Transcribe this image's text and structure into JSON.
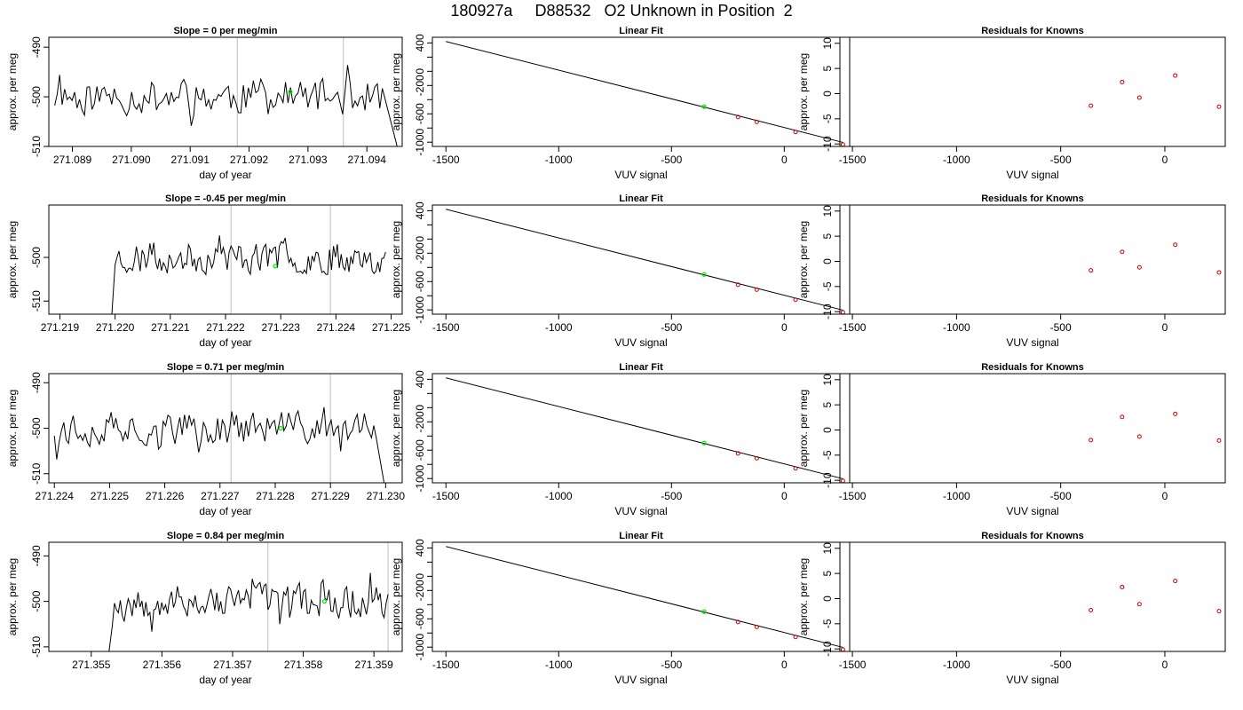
{
  "title": "180927a     D88532   O2 Unknown in Position  2",
  "colors": {
    "line": "#000000",
    "vline": "#c8c8c8",
    "unknown_point": "#00ee00",
    "known_point": "#cc0000"
  },
  "chart_data": [
    {
      "type": "line",
      "title": "Slope =  0  per meg/min",
      "xlabel": "day of year",
      "ylabel": "approx. per meg",
      "xlim": [
        271.0886,
        271.0946
      ],
      "ylim": [
        -510,
        -488
      ],
      "xticks": [
        271.089,
        271.09,
        271.091,
        271.092,
        271.093,
        271.094
      ],
      "xtick_labels": [
        "271.089",
        "271.090",
        "271.091",
        "271.092",
        "271.093",
        "271.094"
      ],
      "yticks": [
        -510,
        -500,
        -490
      ],
      "ytick_labels": [
        "-510",
        "-500",
        "-490"
      ],
      "vlines": [
        271.0918,
        271.0936
      ],
      "highlight": {
        "x": 271.0927,
        "y": -499
      },
      "trace": {
        "x_start": 271.0887,
        "x_end": 271.0946,
        "x_drop": 271.0943,
        "seed": 11
      }
    },
    {
      "type": "scatter",
      "title": "Linear Fit",
      "xlabel": "VUV signal",
      "ylabel": "approx. per meg",
      "xlim": [
        -1560,
        290
      ],
      "ylim": [
        -1060,
        480
      ],
      "xticks": [
        -1500,
        -1000,
        -500,
        0
      ],
      "xtick_labels": [
        "-1500",
        "-1000",
        "-500",
        "0"
      ],
      "yticks": [
        -1000,
        -800,
        -600,
        -400,
        -200,
        0,
        200,
        400
      ],
      "ytick_labels": [
        "-1000",
        "",
        "-600",
        "",
        "-200",
        "0",
        "",
        "400"
      ],
      "fit_line": {
        "x": [
          -1500,
          260
        ],
        "y": [
          420,
          -1003
        ]
      },
      "known_points": {
        "x": [
          -205,
          -122,
          50,
          260
        ],
        "y": [
          -645,
          -714,
          -857,
          -1033
        ]
      },
      "unknown_point": {
        "x": -355,
        "y": -500
      }
    },
    {
      "type": "scatter",
      "title": "Residuals for Knowns",
      "xlabel": "VUV signal",
      "ylabel": "",
      "xlim": [
        -1560,
        290
      ],
      "ylim": [
        -10.5,
        11.2
      ],
      "xticks": [
        -1500,
        -1000,
        -500,
        0
      ],
      "xtick_labels": [
        "-1500",
        "-1000",
        "-500",
        "0"
      ],
      "yticks": [
        -10,
        -5,
        0,
        5,
        10
      ],
      "ytick_labels": [
        "-10",
        "-5",
        "0",
        "5",
        "10"
      ],
      "points": {
        "x": [
          -355,
          -205,
          -122,
          50,
          260
        ],
        "y": [
          -2.4,
          2.3,
          -0.8,
          3.6,
          -2.6
        ]
      }
    },
    {
      "type": "line",
      "title": "Slope =  -0.45  per meg/min",
      "xlabel": "day of year",
      "ylabel": "approx. per meg",
      "xlim": [
        271.2188,
        271.2252
      ],
      "ylim": [
        -513,
        -488
      ],
      "xticks": [
        271.219,
        271.22,
        271.221,
        271.222,
        271.223,
        271.224,
        271.225
      ],
      "xtick_labels": [
        "271.219",
        "271.220",
        "271.221",
        "271.222",
        "271.223",
        "271.224",
        "271.225"
      ],
      "yticks": [
        -510,
        -500
      ],
      "ytick_labels": [
        "-510",
        "-500"
      ],
      "vlines": [
        271.2221,
        271.2239
      ],
      "highlight": {
        "x": 271.2229,
        "y": -502
      },
      "trace": {
        "x_start": 271.22,
        "x_end": 271.2249,
        "x_drop": null,
        "seed": 23
      }
    },
    {
      "type": "scatter",
      "title": "Linear Fit",
      "xlabel": "VUV signal",
      "ylabel": "approx. per meg",
      "xlim": [
        -1560,
        290
      ],
      "ylim": [
        -1060,
        480
      ],
      "xticks": [
        -1500,
        -1000,
        -500,
        0
      ],
      "xtick_labels": [
        "-1500",
        "-1000",
        "-500",
        "0"
      ],
      "yticks": [
        -1000,
        -800,
        -600,
        -400,
        -200,
        0,
        200,
        400
      ],
      "ytick_labels": [
        "-1000",
        "",
        "-600",
        "",
        "-200",
        "0",
        "",
        "400"
      ],
      "fit_line": {
        "x": [
          -1500,
          260
        ],
        "y": [
          420,
          -1003
        ]
      },
      "known_points": {
        "x": [
          -205,
          -122,
          50,
          260
        ],
        "y": [
          -645,
          -714,
          -857,
          -1033
        ]
      },
      "unknown_point": {
        "x": -355,
        "y": -500
      }
    },
    {
      "type": "scatter",
      "title": "Residuals for Knowns",
      "xlabel": "VUV signal",
      "ylabel": "",
      "xlim": [
        -1560,
        290
      ],
      "ylim": [
        -10.5,
        11.2
      ],
      "xticks": [
        -1500,
        -1000,
        -500,
        0
      ],
      "xtick_labels": [
        "-1500",
        "-1000",
        "-500",
        "0"
      ],
      "yticks": [
        -10,
        -5,
        0,
        5,
        10
      ],
      "ytick_labels": [
        "-10",
        "-5",
        "0",
        "5",
        "10"
      ],
      "points": {
        "x": [
          -355,
          -205,
          -122,
          50,
          260
        ],
        "y": [
          -1.8,
          1.9,
          -1.2,
          3.3,
          -2.2
        ]
      }
    },
    {
      "type": "line",
      "title": "Slope =  0.71  per meg/min",
      "xlabel": "day of year",
      "ylabel": "approx. per meg",
      "xlim": [
        271.2239,
        271.2303
      ],
      "ylim": [
        -512,
        -488
      ],
      "xticks": [
        271.224,
        271.225,
        271.226,
        271.227,
        271.228,
        271.229,
        271.23
      ],
      "xtick_labels": [
        "271.224",
        "271.225",
        "271.226",
        "271.227",
        "271.228",
        "271.229",
        "271.230"
      ],
      "yticks": [
        -510,
        -500,
        -490
      ],
      "ytick_labels": [
        "-510",
        "-500",
        "-490"
      ],
      "vlines": [
        271.2272,
        271.229
      ],
      "highlight": {
        "x": 271.2281,
        "y": -500
      },
      "trace": {
        "x_start": 271.224,
        "x_end": 271.23,
        "x_drop": 271.2298,
        "seed": 37
      }
    },
    {
      "type": "scatter",
      "title": "Linear Fit",
      "xlabel": "VUV signal",
      "ylabel": "approx. per meg",
      "xlim": [
        -1560,
        290
      ],
      "ylim": [
        -1060,
        480
      ],
      "xticks": [
        -1500,
        -1000,
        -500,
        0
      ],
      "xtick_labels": [
        "-1500",
        "-1000",
        "-500",
        "0"
      ],
      "yticks": [
        -1000,
        -800,
        -600,
        -400,
        -200,
        0,
        200,
        400
      ],
      "ytick_labels": [
        "-1000",
        "",
        "-600",
        "",
        "-200",
        "0",
        "",
        "400"
      ],
      "fit_line": {
        "x": [
          -1500,
          260
        ],
        "y": [
          420,
          -1003
        ]
      },
      "known_points": {
        "x": [
          -205,
          -122,
          50,
          260
        ],
        "y": [
          -645,
          -714,
          -857,
          -1033
        ]
      },
      "unknown_point": {
        "x": -355,
        "y": -500
      }
    },
    {
      "type": "scatter",
      "title": "Residuals for Knowns",
      "xlabel": "VUV signal",
      "ylabel": "",
      "xlim": [
        -1560,
        290
      ],
      "ylim": [
        -10.5,
        11.2
      ],
      "xticks": [
        -1500,
        -1000,
        -500,
        0
      ],
      "xtick_labels": [
        "-1500",
        "-1000",
        "-500",
        "0"
      ],
      "yticks": [
        -10,
        -5,
        0,
        5,
        10
      ],
      "ytick_labels": [
        "-10",
        "-5",
        "0",
        "5",
        "10"
      ],
      "points": {
        "x": [
          -355,
          -205,
          -122,
          50,
          260
        ],
        "y": [
          -2.0,
          2.6,
          -1.3,
          3.2,
          -2.1
        ]
      }
    },
    {
      "type": "line",
      "title": "Slope =  0.84  per meg/min",
      "xlabel": "day of year",
      "ylabel": "approx. per meg",
      "xlim": [
        271.3544,
        271.3594
      ],
      "ylim": [
        -511,
        -487
      ],
      "xticks": [
        271.355,
        271.356,
        271.357,
        271.358,
        271.359
      ],
      "xtick_labels": [
        "271.355",
        "271.356",
        "271.357",
        "271.358",
        "271.359"
      ],
      "yticks": [
        -510,
        -500,
        -490
      ],
      "ytick_labels": [
        "-510",
        "-500",
        "-490"
      ],
      "vlines": [
        271.3575,
        271.3592
      ],
      "highlight": {
        "x": 271.3583,
        "y": -500
      },
      "trace": {
        "x_start": 271.3553,
        "x_end": 271.3592,
        "x_drop": null,
        "seed": 53
      }
    },
    {
      "type": "scatter",
      "title": "Linear Fit",
      "xlabel": "VUV signal",
      "ylabel": "approx. per meg",
      "xlim": [
        -1560,
        290
      ],
      "ylim": [
        -1060,
        480
      ],
      "xticks": [
        -1500,
        -1000,
        -500,
        0
      ],
      "xtick_labels": [
        "-1500",
        "-1000",
        "-500",
        "0"
      ],
      "yticks": [
        -1000,
        -800,
        -600,
        -400,
        -200,
        0,
        200,
        400
      ],
      "ytick_labels": [
        "-1000",
        "",
        "-600",
        "",
        "-200",
        "0",
        "",
        "400"
      ],
      "fit_line": {
        "x": [
          -1500,
          260
        ],
        "y": [
          420,
          -1003
        ]
      },
      "known_points": {
        "x": [
          -205,
          -122,
          50,
          260
        ],
        "y": [
          -645,
          -714,
          -857,
          -1033
        ]
      },
      "unknown_point": {
        "x": -355,
        "y": -500
      }
    },
    {
      "type": "scatter",
      "title": "Residuals for Knowns",
      "xlabel": "VUV signal",
      "ylabel": "",
      "xlim": [
        -1560,
        290
      ],
      "ylim": [
        -10.5,
        11.2
      ],
      "xticks": [
        -1500,
        -1000,
        -500,
        0
      ],
      "xtick_labels": [
        "-1500",
        "-1000",
        "-500",
        "0"
      ],
      "yticks": [
        -10,
        -5,
        0,
        5,
        10
      ],
      "ytick_labels": [
        "-10",
        "-5",
        "0",
        "5",
        "10"
      ],
      "points": {
        "x": [
          -355,
          -205,
          -122,
          50,
          260
        ],
        "y": [
          -2.3,
          2.3,
          -1.1,
          3.5,
          -2.5
        ]
      }
    }
  ]
}
